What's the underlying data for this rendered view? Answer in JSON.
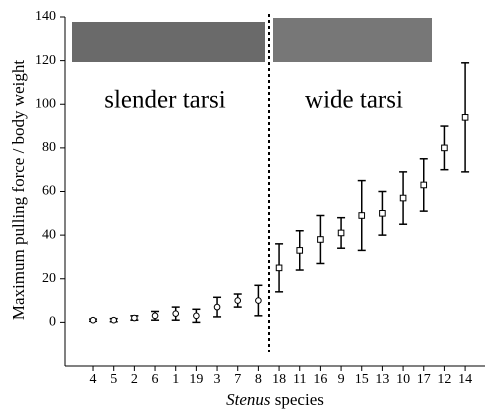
{
  "chart_data": {
    "type": "errorbar",
    "y_label": "Maximum pulling force / body weight",
    "x_label_italic": "Stenus",
    "x_label": "species",
    "ylim": [
      -20,
      140
    ],
    "yticks": [
      0,
      20,
      40,
      60,
      80,
      100,
      120,
      140
    ],
    "groups": [
      {
        "label": "slender tarsi",
        "marker": "circle",
        "categories": [
          "4",
          "5",
          "2",
          "6",
          "1",
          "19",
          "3",
          "7",
          "8"
        ],
        "values": [
          1,
          1,
          2,
          3,
          4,
          3,
          7,
          10,
          10
        ],
        "errors": [
          0.5,
          0.7,
          1,
          2,
          3,
          3,
          4.5,
          3,
          7
        ]
      },
      {
        "label": "wide tarsi",
        "marker": "square",
        "categories": [
          "18",
          "11",
          "16",
          "9",
          "15",
          "13",
          "10",
          "17",
          "12",
          "14"
        ],
        "values": [
          25,
          33,
          38,
          41,
          49,
          50,
          57,
          63,
          80,
          94
        ],
        "errors": [
          11,
          9,
          11,
          7,
          16,
          10,
          12,
          12,
          10,
          25
        ]
      }
    ]
  }
}
